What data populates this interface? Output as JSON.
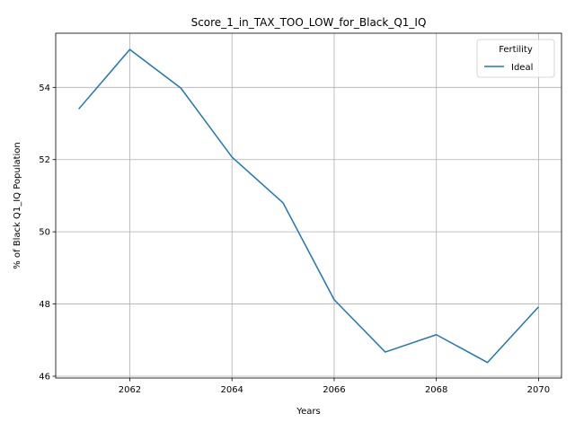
{
  "chart_data": {
    "type": "line",
    "title": "Score_1_in_TAX_TOO_LOW_for_Black_Q1_IQ",
    "xlabel": "Years",
    "ylabel": "% of Black Q1_IQ Population",
    "x": [
      2061,
      2062,
      2063,
      2064,
      2065,
      2066,
      2067,
      2068,
      2069,
      2070
    ],
    "series": [
      {
        "name": "Ideal",
        "color": "#1f77b4",
        "values": [
          53.4,
          55.05,
          53.98,
          52.07,
          50.8,
          48.12,
          46.67,
          47.15,
          46.38,
          47.92
        ]
      }
    ],
    "xlim": [
      2060.55,
      2070.45
    ],
    "ylim": [
      45.95,
      55.5
    ],
    "xticks": [
      2062,
      2064,
      2066,
      2068,
      2070
    ],
    "yticks": [
      46,
      48,
      50,
      52,
      54
    ],
    "grid": true,
    "legend": {
      "title": "Fertility",
      "placement": "top-right"
    }
  }
}
